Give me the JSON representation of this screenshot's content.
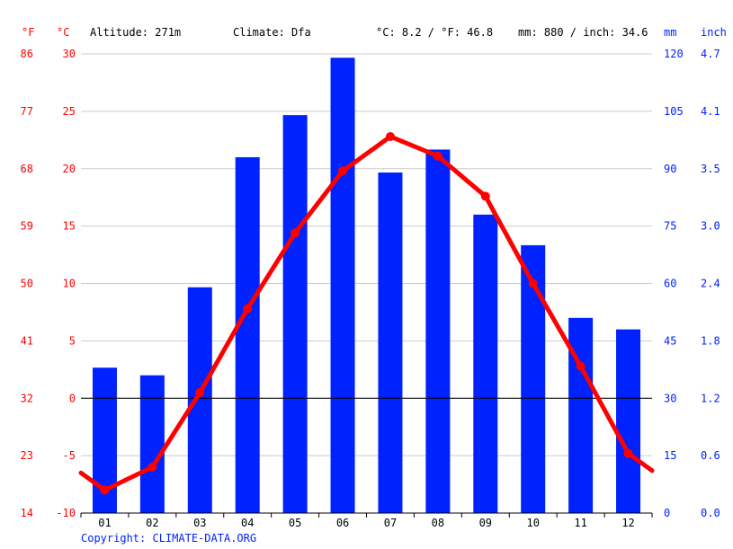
{
  "header": {
    "unit_f": "°F",
    "unit_c": "°C",
    "altitude": "Altitude: 271m",
    "climate": "Climate: Dfa",
    "temp_avg": "°C: 8.2 / °F: 46.8",
    "precip_total": "mm: 880 / inch: 34.6",
    "unit_mm": "mm",
    "unit_inch": "inch"
  },
  "axes": {
    "left_f": [
      "14",
      "23",
      "32",
      "41",
      "50",
      "59",
      "68",
      "77",
      "86"
    ],
    "left_c": [
      "-10",
      "-5",
      "0",
      "5",
      "10",
      "15",
      "20",
      "25",
      "30"
    ],
    "right_mm": [
      "0",
      "15",
      "30",
      "45",
      "60",
      "75",
      "90",
      "105",
      "120"
    ],
    "right_inch": [
      "0.0",
      "0.6",
      "1.2",
      "1.8",
      "2.4",
      "3.0",
      "3.5",
      "4.1",
      "4.7"
    ]
  },
  "copyright": "Copyright: CLIMATE-DATA.ORG",
  "colors": {
    "temperature": "#ff0000",
    "precipitation": "#0022ff",
    "grid": "#cccccc",
    "zero_line": "#000000"
  },
  "chart_data": {
    "type": "bar",
    "title": "",
    "categories": [
      "01",
      "02",
      "03",
      "04",
      "05",
      "06",
      "07",
      "08",
      "09",
      "10",
      "11",
      "12"
    ],
    "series": [
      {
        "name": "Precipitation (mm)",
        "type": "bar",
        "axis": "right",
        "values": [
          38,
          36,
          59,
          93,
          104,
          119,
          89,
          95,
          78,
          70,
          51,
          48
        ]
      },
      {
        "name": "Temperature (°C)",
        "type": "line",
        "axis": "left",
        "values": [
          -8.0,
          -6.0,
          0.5,
          7.8,
          14.4,
          19.8,
          22.8,
          21.1,
          17.6,
          10.0,
          2.8,
          -4.8
        ],
        "edge_left": -6.5,
        "edge_right": -6.3
      }
    ],
    "xlabel": "",
    "ylabel_left": "°C",
    "ylabel_right": "mm",
    "ylim_left": [
      -10,
      30
    ],
    "ylim_right": [
      0,
      120
    ]
  }
}
